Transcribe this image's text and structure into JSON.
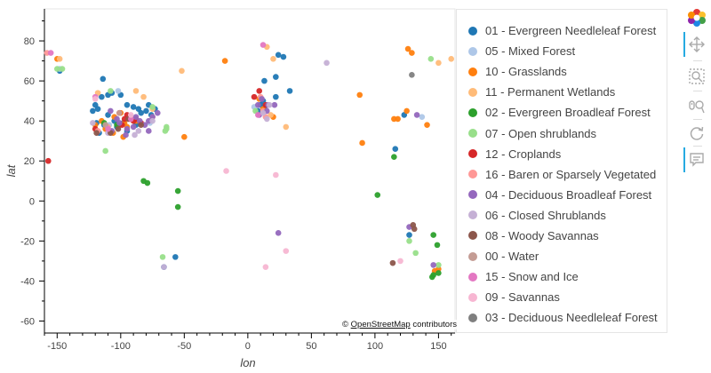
{
  "chart_data": {
    "type": "scatter",
    "xlabel": "lon",
    "ylabel": "lat",
    "xlim": [
      -160,
      163
    ],
    "ylim": [
      -66,
      96
    ],
    "x_ticks": [
      -150,
      -100,
      -50,
      0,
      50,
      100,
      150
    ],
    "y_ticks": [
      -60,
      -40,
      -20,
      0,
      20,
      40,
      60,
      80
    ],
    "series": [
      {
        "name": "01 - Evergreen Needleleaf Forest",
        "color": "#1f77b4",
        "points": [
          [
            -120,
            48
          ],
          [
            -122,
            45
          ],
          [
            -118,
            46
          ],
          [
            -115,
            52
          ],
          [
            -110,
            53
          ],
          [
            -107,
            54
          ],
          [
            -100,
            53
          ],
          [
            -95,
            48
          ],
          [
            -90,
            47
          ],
          [
            -86,
            46
          ],
          [
            -80,
            45
          ],
          [
            -76,
            43
          ],
          [
            -73,
            46
          ],
          [
            -78,
            48
          ],
          [
            -84,
            44
          ],
          [
            -92,
            42
          ],
          [
            -98,
            39
          ],
          [
            -105,
            40
          ],
          [
            -110,
            43
          ],
          [
            -113,
            38
          ],
          [
            -117,
            34
          ],
          [
            -119,
            39
          ],
          [
            -114,
            61
          ],
          [
            -148,
            65
          ],
          [
            -57,
            -28
          ],
          [
            -66,
            -33
          ],
          [
            10,
            48
          ],
          [
            13,
            47
          ],
          [
            8,
            45
          ],
          [
            22,
            62
          ],
          [
            24,
            73
          ],
          [
            28,
            72
          ],
          [
            33,
            55
          ],
          [
            13,
            60
          ],
          [
            12,
            50
          ],
          [
            22,
            52
          ],
          [
            116,
            26
          ],
          [
            123,
            43
          ],
          [
            127,
            -17
          ],
          [
            -103,
            37
          ],
          [
            -95,
            35
          ],
          [
            -88,
            38
          ]
        ]
      },
      {
        "name": "05 - Mixed Forest",
        "color": "#aec7e8",
        "points": [
          [
            -102,
            55
          ],
          [
            -109,
            38
          ],
          [
            -77,
            39
          ],
          [
            137,
            42
          ],
          [
            5,
            47
          ],
          [
            -148,
            66
          ]
        ]
      },
      {
        "name": "10 - Grasslands",
        "color": "#ff7f0e",
        "points": [
          [
            -150,
            71
          ],
          [
            -120,
            38
          ],
          [
            -115,
            40
          ],
          [
            -112,
            36
          ],
          [
            -101,
            38
          ],
          [
            -97,
            39
          ],
          [
            -105,
            42
          ],
          [
            -100,
            44
          ],
          [
            -95,
            37
          ],
          [
            -98,
            32
          ],
          [
            -92,
            41
          ],
          [
            -88,
            40
          ],
          [
            -106,
            34
          ],
          [
            -18,
            70
          ],
          [
            9,
            51
          ],
          [
            12,
            46
          ],
          [
            20,
            42
          ],
          [
            88,
            53
          ],
          [
            90,
            29
          ],
          [
            115,
            41
          ],
          [
            118,
            41
          ],
          [
            125,
            45
          ],
          [
            126,
            76
          ],
          [
            129,
            74
          ],
          [
            141,
            38
          ],
          [
            147,
            -35
          ],
          [
            150,
            -34
          ],
          [
            -50,
            32
          ]
        ]
      },
      {
        "name": "11 - Permanent Wetlands",
        "color": "#ffbb78",
        "points": [
          [
            -148,
            71
          ],
          [
            -118,
            54
          ],
          [
            -88,
            55
          ],
          [
            -82,
            52
          ],
          [
            -75,
            46
          ],
          [
            -52,
            65
          ],
          [
            15,
            77
          ],
          [
            20,
            71
          ],
          [
            18,
            43
          ],
          [
            30,
            37
          ],
          [
            160,
            71
          ],
          [
            150,
            69
          ]
        ]
      },
      {
        "name": "02 - Evergreen Broadleaf Forest",
        "color": "#2ca02c",
        "points": [
          [
            -113,
            39
          ],
          [
            -82,
            10
          ],
          [
            -79,
            9
          ],
          [
            -55,
            5
          ],
          [
            -55,
            -3
          ],
          [
            102,
            3
          ],
          [
            115,
            22
          ],
          [
            146,
            -17
          ],
          [
            149,
            -22
          ],
          [
            146,
            -37
          ],
          [
            150,
            -36
          ],
          [
            145,
            -38
          ],
          [
            -103,
            38
          ]
        ]
      },
      {
        "name": "07 - Open shrublands",
        "color": "#98df8a",
        "points": [
          [
            -150,
            66
          ],
          [
            -146,
            66
          ],
          [
            -108,
            55
          ],
          [
            -112,
            25
          ],
          [
            -75,
            47
          ],
          [
            -67,
            -28
          ],
          [
            -64,
            37
          ],
          [
            -64,
            36
          ],
          [
            -65,
            35
          ],
          [
            6,
            45
          ],
          [
            144,
            71
          ],
          [
            150,
            -32
          ],
          [
            127,
            -20
          ],
          [
            132,
            -26
          ]
        ]
      },
      {
        "name": "12 - Croplands",
        "color": "#d62728",
        "points": [
          [
            -157,
            20
          ],
          [
            -120,
            36
          ],
          [
            -101,
            44
          ],
          [
            -97,
            41
          ],
          [
            -93,
            41
          ],
          [
            -90,
            40
          ],
          [
            -99,
            38
          ],
          [
            -95,
            43
          ],
          [
            -88,
            41
          ],
          [
            -84,
            39
          ],
          [
            9,
            55
          ],
          [
            5,
            52
          ],
          [
            14,
            48
          ]
        ]
      },
      {
        "name": "16 - Baren or Sparsely Vegetated",
        "color": "#ff9896",
        "points": [
          [
            -158,
            74
          ],
          [
            -118,
            35
          ],
          [
            -110,
            37
          ],
          [
            -75,
            42
          ],
          [
            10,
            52
          ],
          [
            12,
            45
          ],
          [
            14,
            42
          ]
        ]
      },
      {
        "name": "04 - Deciduous Broadleaf Forest",
        "color": "#9467bd",
        "points": [
          [
            -101,
            39
          ],
          [
            -95,
            36
          ],
          [
            -90,
            37
          ],
          [
            -85,
            40
          ],
          [
            -81,
            38
          ],
          [
            -78,
            40
          ],
          [
            -75,
            42
          ],
          [
            -71,
            44
          ],
          [
            -78,
            35
          ],
          [
            -88,
            42
          ],
          [
            -107,
            35
          ],
          [
            -96,
            33
          ],
          [
            11,
            51
          ],
          [
            8,
            48
          ],
          [
            16,
            48
          ],
          [
            21,
            48
          ],
          [
            9,
            43
          ],
          [
            15,
            45
          ],
          [
            24,
            -16
          ],
          [
            133,
            43
          ],
          [
            146,
            -32
          ],
          [
            127,
            -13
          ],
          [
            -108,
            45
          ],
          [
            -103,
            41
          ]
        ]
      },
      {
        "name": "06 - Closed Shrublands",
        "color": "#c5b0d5",
        "points": [
          [
            -122,
            39
          ],
          [
            -110,
            34
          ],
          [
            -89,
            33
          ],
          [
            -86,
            35
          ],
          [
            -66,
            -33
          ],
          [
            62,
            69
          ],
          [
            15,
            41
          ],
          [
            12,
            44
          ],
          [
            17,
            48
          ],
          [
            -75,
            40
          ]
        ]
      },
      {
        "name": "08 - Woody Savannas",
        "color": "#8c564b",
        "points": [
          [
            -119,
            34
          ],
          [
            -108,
            34
          ],
          [
            -102,
            36
          ],
          [
            -94,
            41
          ],
          [
            114,
            -31
          ],
          [
            130,
            -12
          ],
          [
            131,
            -14
          ],
          [
            -84,
            38
          ]
        ]
      },
      {
        "name": "00 - Water",
        "color": "#c49c94",
        "points": [
          [
            -101,
            44
          ],
          [
            -112,
            38
          ]
        ]
      },
      {
        "name": "15 - Snow and Ice",
        "color": "#e377c2",
        "points": [
          [
            -155,
            74
          ],
          [
            -120,
            52
          ],
          [
            -110,
            36
          ],
          [
            -92,
            41
          ],
          [
            12,
            78
          ],
          [
            8,
            43
          ]
        ]
      },
      {
        "name": "09 - Savannas",
        "color": "#f7b6d2",
        "points": [
          [
            -17,
            15
          ],
          [
            14,
            -33
          ],
          [
            22,
            13
          ],
          [
            30,
            -25
          ],
          [
            120,
            -30
          ],
          [
            -120,
            51
          ],
          [
            -92,
            43
          ]
        ]
      },
      {
        "name": "03 - Deciduous Needleleaf Forest",
        "color": "#7f7f7f",
        "points": [
          [
            129,
            63
          ]
        ]
      }
    ]
  },
  "attribution": {
    "prefix": "©",
    "link": "OpenStreetMap",
    "suffix": "contributors"
  },
  "toolbar": {
    "items": [
      {
        "name": "bokeh-logo",
        "icon": "bokeh-logo-icon"
      },
      {
        "name": "pan-tool",
        "icon": "pan-icon"
      },
      {
        "name": "box-zoom-tool",
        "icon": "box-zoom-icon"
      },
      {
        "name": "wheel-zoom-tool",
        "icon": "wheel-zoom-icon"
      },
      {
        "name": "reset-tool",
        "icon": "reset-icon"
      },
      {
        "name": "hover-tool",
        "icon": "hover-icon"
      }
    ]
  }
}
